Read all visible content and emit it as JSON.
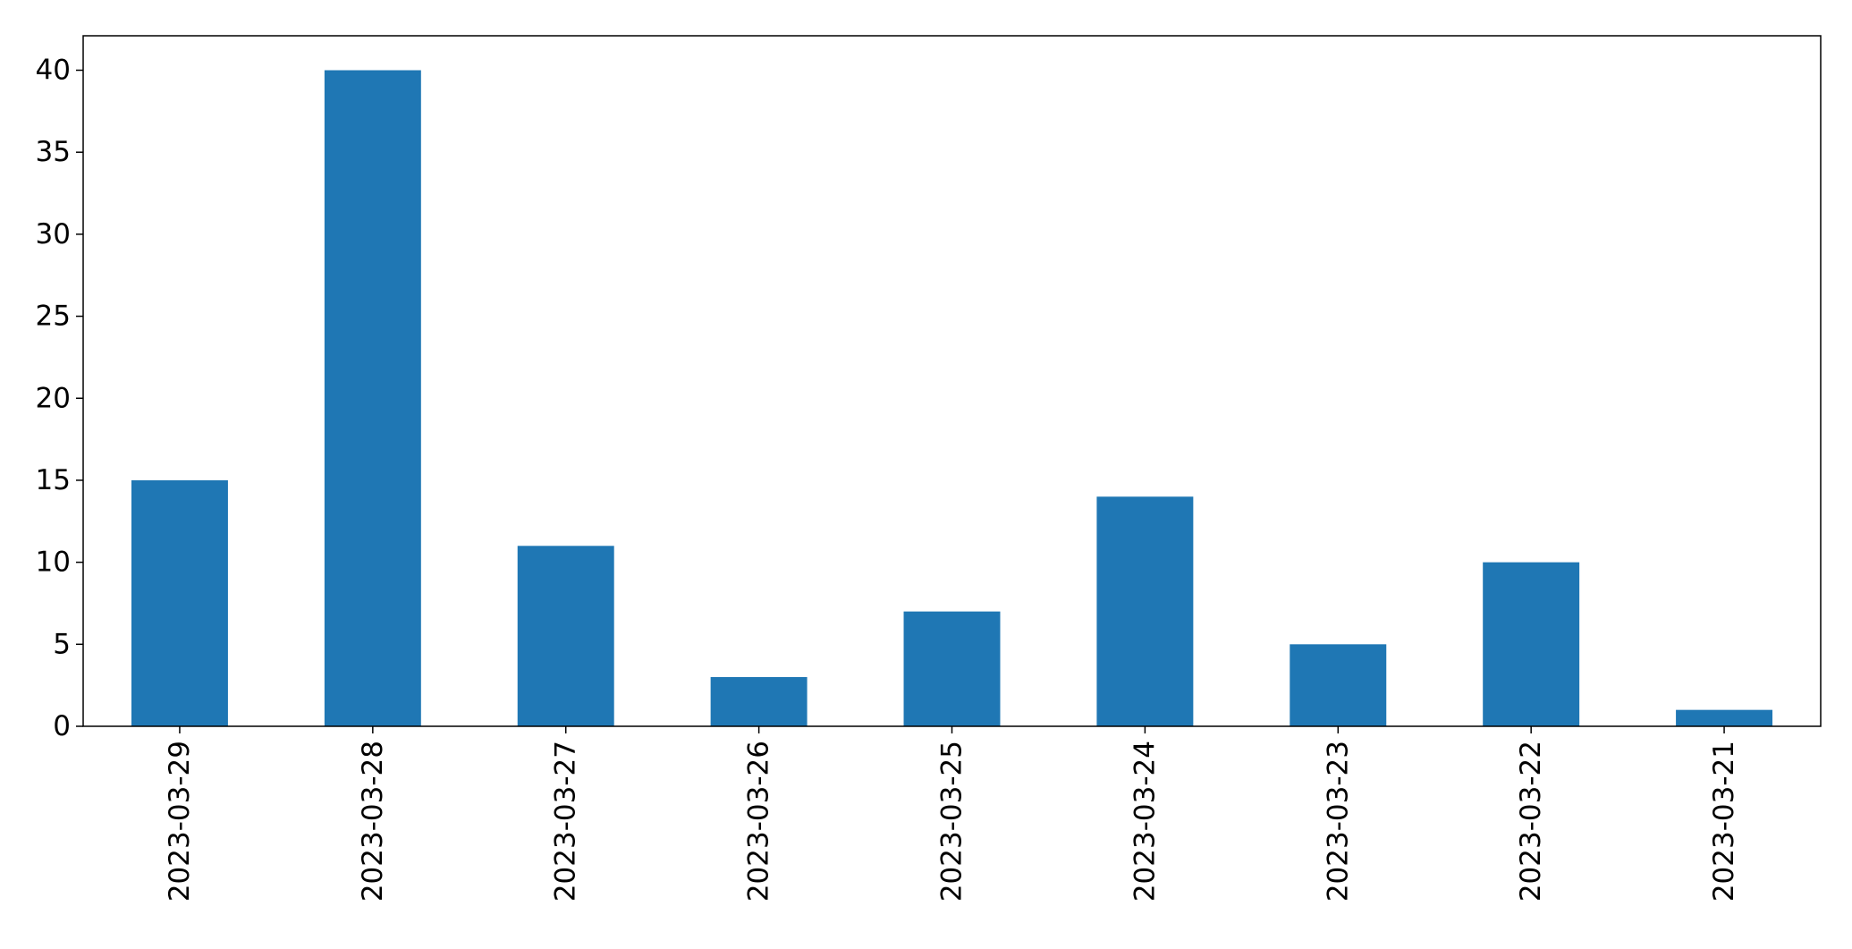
{
  "chart_data": {
    "type": "bar",
    "title": "",
    "xlabel": "",
    "ylabel": "",
    "categories": [
      "2023-03-29",
      "2023-03-28",
      "2023-03-27",
      "2023-03-26",
      "2023-03-25",
      "2023-03-24",
      "2023-03-23",
      "2023-03-22",
      "2023-03-21"
    ],
    "values": [
      15,
      40,
      11,
      3,
      7,
      14,
      5,
      10,
      1
    ],
    "ylim": [
      0,
      42.1
    ],
    "yticks": [
      0,
      5,
      10,
      15,
      20,
      25,
      30,
      35,
      40
    ],
    "grid": false,
    "legend": "none",
    "bar_color": "#1f77b4"
  }
}
